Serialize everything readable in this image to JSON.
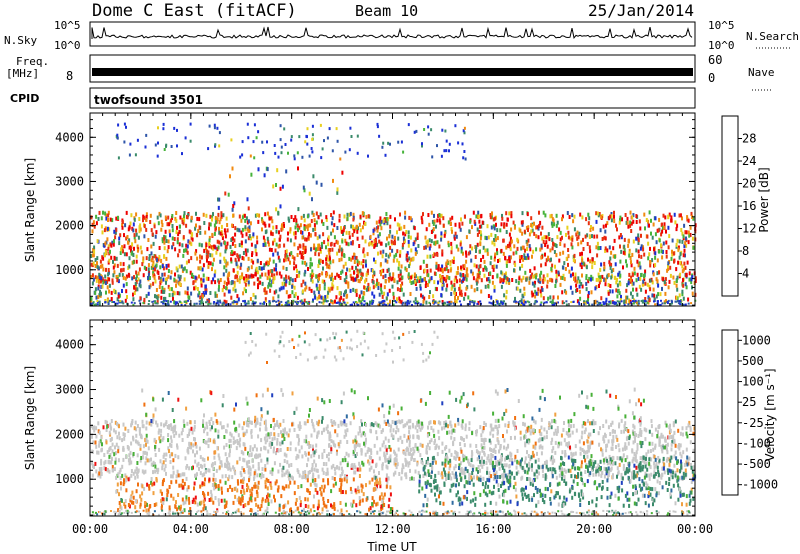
{
  "header": {
    "station": "Dome C East (fitACF)",
    "beam": "Beam 10",
    "date": "25/Jan/2014"
  },
  "strips": {
    "nsky_label": "N.Sky",
    "nsky_ticks": [
      "10^5",
      "10^0"
    ],
    "nsearch_label": "N.Search",
    "nsearch_ticks": [
      "10^5",
      "10^0"
    ],
    "freq_label_1": "Freq.",
    "freq_label_2": "[MHz]",
    "freq_ticks": [
      "8"
    ],
    "nave_label": "Nave",
    "nave_ticks": [
      "60",
      "0"
    ],
    "cpid_label": "CPID",
    "cpid_value": "twofsound 3501"
  },
  "colors": {
    "power": [
      "#1a2fd6",
      "#2e55a8",
      "#3a8a6a",
      "#46b33a",
      "#e8d020",
      "#f08a10",
      "#e83010",
      "#ee0000"
    ],
    "velocity": [
      "#2040c0",
      "#2e6aa0",
      "#3a8a6a",
      "#48b038",
      "#c8c8c8",
      "#f0a040",
      "#f07010",
      "#ee1010"
    ]
  },
  "chart_data": [
    {
      "type": "heatmap",
      "name": "power",
      "xlabel": "",
      "ylabel": "Slant Range [km]",
      "x_ticks": [
        "00:00",
        "04:00",
        "08:00",
        "12:00",
        "16:00",
        "20:00",
        "00:00"
      ],
      "y_ticks": [
        "1000",
        "2000",
        "3000",
        "4000"
      ],
      "ylim": [
        180,
        4550
      ],
      "xlim": [
        0,
        24
      ],
      "colorbar_label": "Power [dB]",
      "colorbar_ticks": [
        "4",
        "8",
        "12",
        "16",
        "20",
        "24",
        "28"
      ]
    },
    {
      "type": "heatmap",
      "name": "velocity",
      "xlabel": "Time UT",
      "ylabel": "Slant Range [km]",
      "x_ticks": [
        "00:00",
        "04:00",
        "08:00",
        "12:00",
        "16:00",
        "20:00",
        "00:00"
      ],
      "y_ticks": [
        "1000",
        "2000",
        "3000",
        "4000"
      ],
      "ylim": [
        180,
        4550
      ],
      "xlim": [
        0,
        24
      ],
      "colorbar_label": "Velocity [m s⁻¹]",
      "colorbar_ticks": [
        "1000",
        "500",
        "100",
        "25",
        "-25",
        "-100",
        "-500",
        "-1000"
      ]
    }
  ]
}
